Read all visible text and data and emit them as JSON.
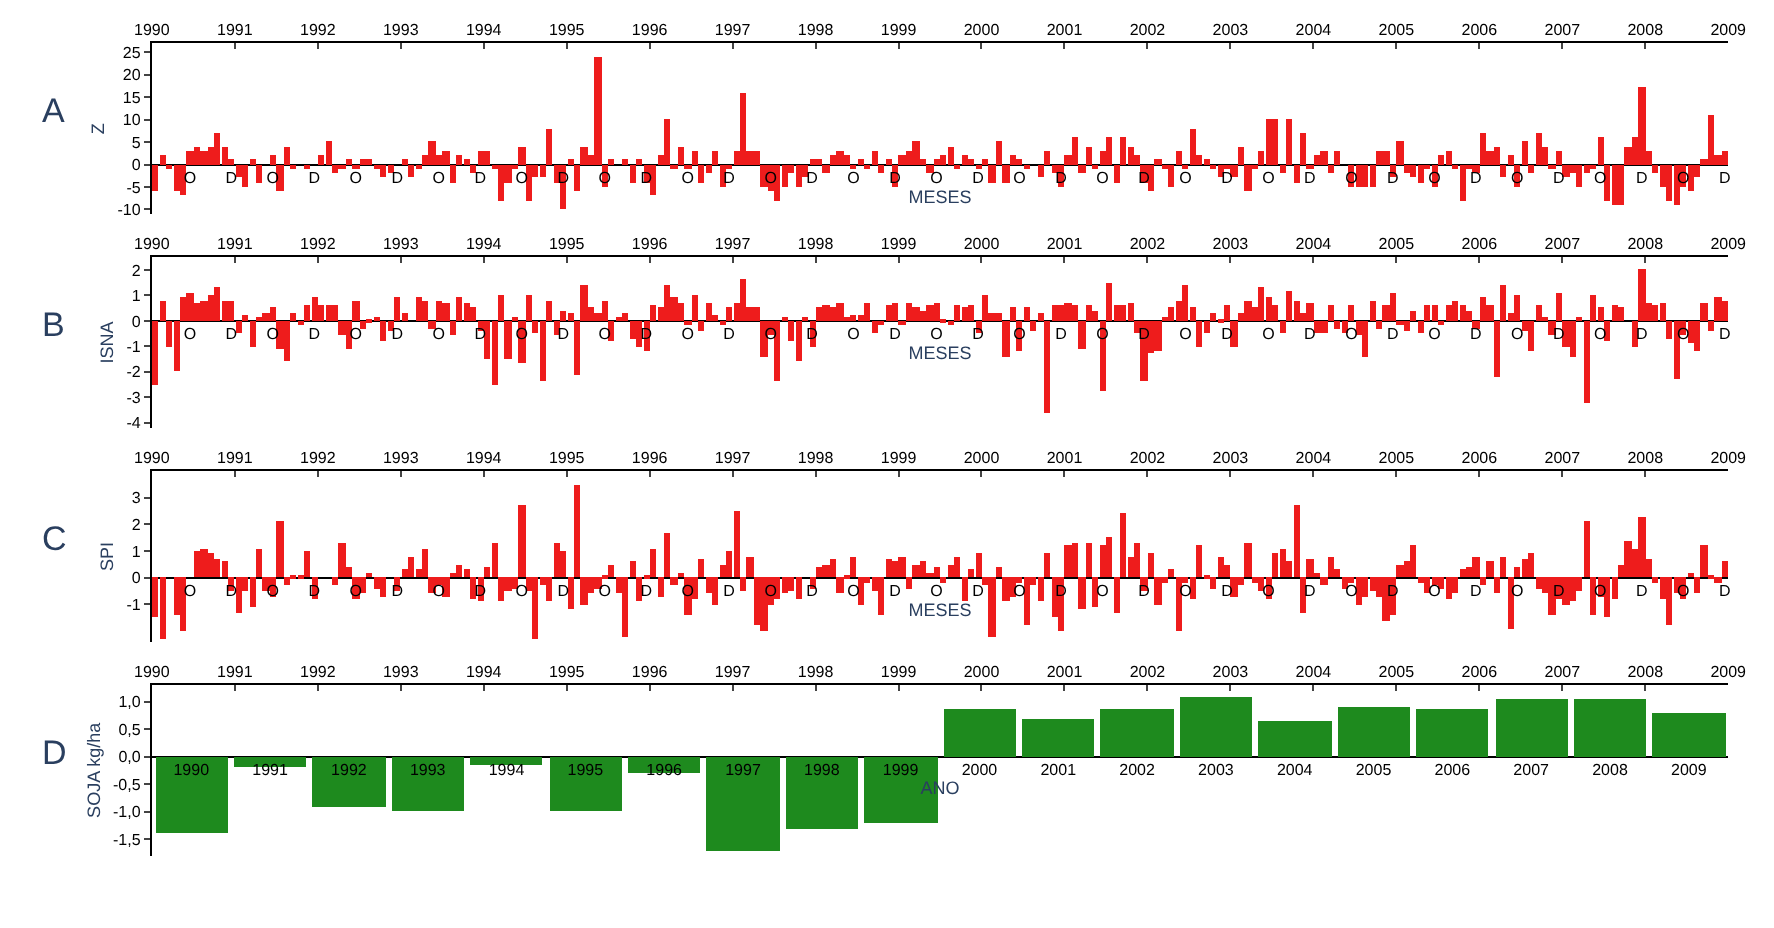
{
  "chart_data": [
    {
      "type": "bar",
      "title": "A",
      "ylabel": "Z",
      "xlabel": "MESES",
      "color": "#ee1c1c",
      "x2lim": [
        1990,
        2009
      ],
      "x2ticks": [
        1990,
        1991,
        1992,
        1993,
        1994,
        1995,
        1996,
        1997,
        1998,
        1999,
        2000,
        2001,
        2002,
        2003,
        2004,
        2005,
        2006,
        2007,
        2008,
        2009
      ],
      "ylim": [
        -11,
        27
      ],
      "yticks": [
        -10,
        -5,
        0,
        5,
        10,
        15,
        20,
        25
      ],
      "categories": [
        null,
        null,
        null,
        null,
        null,
        "O",
        null,
        null,
        null,
        null,
        null,
        "D",
        null,
        null,
        null,
        null,
        null,
        "O",
        null,
        null,
        null,
        null,
        null,
        "D",
        null,
        null,
        null,
        null,
        null,
        "O",
        null,
        null,
        null,
        null,
        null,
        "D",
        null,
        null,
        null,
        null,
        null,
        "O",
        null,
        null,
        null,
        null,
        null,
        "D",
        null,
        null,
        null,
        null,
        null,
        "O",
        null,
        null,
        null,
        null,
        null,
        "D",
        null,
        null,
        null,
        null,
        null,
        "O",
        null,
        null,
        null,
        null,
        null,
        "D",
        null,
        null,
        null,
        null,
        null,
        "O",
        null,
        null,
        null,
        null,
        null,
        "D",
        null,
        null,
        null,
        null,
        null,
        "O",
        null,
        null,
        null,
        null,
        null,
        "D",
        null,
        null,
        null,
        null,
        null,
        "O",
        null,
        null,
        null,
        null,
        null,
        "D",
        null,
        null,
        null,
        null,
        null,
        "O",
        null,
        null,
        null,
        null,
        null,
        "D",
        null,
        null,
        null,
        null,
        null,
        "O",
        null,
        null,
        null,
        null,
        null,
        "D",
        null,
        null,
        null,
        null,
        null,
        "O",
        null,
        null,
        null,
        null,
        null,
        "D",
        null,
        null,
        null,
        null,
        null,
        "O",
        null,
        null,
        null,
        null,
        null,
        "D",
        null,
        null,
        null,
        null,
        null,
        "O",
        null,
        null,
        null,
        null,
        null,
        "D",
        null,
        null,
        null,
        null,
        null,
        "O",
        null,
        null,
        null,
        null,
        null,
        "D",
        null,
        null,
        null,
        null,
        null,
        "O",
        null,
        null,
        null,
        null,
        null,
        "D",
        null,
        null,
        null,
        null,
        null,
        "O",
        null,
        null,
        null,
        null,
        null,
        "D",
        null,
        null,
        null,
        null,
        null,
        "O",
        null,
        null,
        null,
        null,
        null,
        "D",
        null,
        null,
        null,
        null,
        null,
        "O",
        null,
        null,
        null,
        null,
        null,
        "D"
      ],
      "values": [
        -6,
        2,
        -1,
        -6,
        -7,
        3,
        4,
        3,
        4,
        7,
        4,
        1,
        -3,
        -5,
        1,
        -4,
        0,
        2,
        -6,
        4,
        -1,
        0,
        -1,
        0,
        2,
        5,
        -2,
        -1,
        1,
        -1,
        1,
        1,
        -1,
        -3,
        -2,
        0,
        1,
        -3,
        -1,
        2,
        5,
        2,
        3,
        -4,
        2,
        1,
        -2,
        3,
        3,
        -1,
        -8,
        -4,
        -1,
        4,
        -8,
        -3,
        -3,
        8,
        -4,
        -10,
        1,
        -6,
        4,
        2,
        24,
        -5,
        1,
        0,
        1,
        -4,
        1,
        -4,
        -7,
        2,
        10,
        -1,
        4,
        -1,
        3,
        -4,
        -2,
        3,
        -5,
        -1,
        3,
        16,
        3,
        3,
        -5,
        -6,
        -8,
        -5,
        -2,
        -5,
        -3,
        1,
        1,
        -2,
        2,
        3,
        2,
        -1,
        1,
        -1,
        3,
        -2,
        1,
        -5,
        2,
        3,
        5,
        1,
        -2,
        1,
        2,
        4,
        -1,
        2,
        1,
        -1,
        1,
        -4,
        5,
        -4,
        2,
        1,
        -1,
        0,
        -3,
        3,
        -2,
        -5,
        2,
        6,
        -2,
        4,
        -1,
        3,
        6,
        -4,
        6,
        4,
        2,
        -4,
        -6,
        1,
        -1,
        -5,
        3,
        -1,
        8,
        2,
        1,
        -1,
        -3,
        -1,
        -3,
        4,
        -6,
        -1,
        3,
        10,
        10,
        -2,
        10,
        -4,
        7,
        -1,
        2,
        3,
        -2,
        3,
        0,
        -5,
        -5,
        -5,
        -5,
        3,
        3,
        -3,
        5,
        -2,
        -3,
        -4,
        -1,
        -5,
        2,
        3,
        -1,
        -8,
        -1,
        -2,
        7,
        3,
        4,
        -3,
        2,
        -5,
        5,
        -2,
        7,
        4,
        -1,
        3,
        -3,
        -2,
        -5,
        -2,
        -1,
        6,
        -8,
        -9,
        -9,
        4,
        6,
        17,
        3,
        -2,
        -5,
        -8,
        -9,
        -5,
        -6,
        -3,
        1,
        11,
        2,
        3
      ]
    },
    {
      "type": "bar",
      "title": "B",
      "ylabel": "ISNA",
      "xlabel": "MESES",
      "color": "#ee1c1c",
      "x2lim": [
        1990,
        2009
      ],
      "x2ticks": [
        1990,
        1991,
        1992,
        1993,
        1994,
        1995,
        1996,
        1997,
        1998,
        1999,
        2000,
        2001,
        2002,
        2003,
        2004,
        2005,
        2006,
        2007,
        2008,
        2009
      ],
      "ylim": [
        -4.2,
        2.5
      ],
      "yticks": [
        -4,
        -3,
        -2,
        -1,
        0,
        1,
        2
      ],
      "categories": [
        null,
        null,
        null,
        null,
        null,
        "O",
        null,
        null,
        null,
        null,
        null,
        "D",
        null,
        null,
        null,
        null,
        null,
        "O",
        null,
        null,
        null,
        null,
        null,
        "D",
        null,
        null,
        null,
        null,
        null,
        "O",
        null,
        null,
        null,
        null,
        null,
        "D",
        null,
        null,
        null,
        null,
        null,
        "O",
        null,
        null,
        null,
        null,
        null,
        "D",
        null,
        null,
        null,
        null,
        null,
        "O",
        null,
        null,
        null,
        null,
        null,
        "D",
        null,
        null,
        null,
        null,
        null,
        "O",
        null,
        null,
        null,
        null,
        null,
        "D",
        null,
        null,
        null,
        null,
        null,
        "O",
        null,
        null,
        null,
        null,
        null,
        "D",
        null,
        null,
        null,
        null,
        null,
        "O",
        null,
        null,
        null,
        null,
        null,
        "D",
        null,
        null,
        null,
        null,
        null,
        "O",
        null,
        null,
        null,
        null,
        null,
        "D",
        null,
        null,
        null,
        null,
        null,
        "O",
        null,
        null,
        null,
        null,
        null,
        "D",
        null,
        null,
        null,
        null,
        null,
        "O",
        null,
        null,
        null,
        null,
        null,
        "D",
        null,
        null,
        null,
        null,
        null,
        "O",
        null,
        null,
        null,
        null,
        null,
        "D",
        null,
        null,
        null,
        null,
        null,
        "O",
        null,
        null,
        null,
        null,
        null,
        "D",
        null,
        null,
        null,
        null,
        null,
        "O",
        null,
        null,
        null,
        null,
        null,
        "D",
        null,
        null,
        null,
        null,
        null,
        "O",
        null,
        null,
        null,
        null,
        null,
        "D",
        null,
        null,
        null,
        null,
        null,
        "O",
        null,
        null,
        null,
        null,
        null,
        "D",
        null,
        null,
        null,
        null,
        null,
        "O",
        null,
        null,
        null,
        null,
        null,
        "D",
        null,
        null,
        null,
        null,
        null,
        "O",
        null,
        null,
        null,
        null,
        null,
        "D",
        null,
        null,
        null,
        null,
        null,
        "O",
        null,
        null,
        null,
        null,
        null,
        "D"
      ],
      "values": [
        -2.5,
        0.8,
        -1,
        -2,
        0.9,
        1.1,
        0.7,
        0.8,
        1,
        1.3,
        0.8,
        0.8,
        -0.5,
        0.2,
        -1,
        0.1,
        0.3,
        0.5,
        -1.1,
        -1.6,
        0.3,
        -0.2,
        0.6,
        0.9,
        0.6,
        0.6,
        0.6,
        -0.6,
        -1.1,
        0.8,
        -0.3,
        -0.1,
        0.1,
        -0.8,
        -0.4,
        0.9,
        0.3,
        0,
        0.9,
        0.8,
        -0.3,
        0.8,
        0.7,
        -0.6,
        0.9,
        0.7,
        0.5,
        -0.4,
        -1.5,
        -2.5,
        1,
        -1.5,
        0.1,
        -1.7,
        1,
        -0.5,
        -2.4,
        0.8,
        -0.6,
        0.4,
        0.3,
        -2.1,
        1.4,
        0.5,
        0.3,
        0.8,
        -0.8,
        0.1,
        0.3,
        -0.7,
        -1,
        -1.2,
        0.6,
        0.5,
        1.4,
        0.9,
        0.7,
        -0.2,
        1,
        -0.4,
        0.7,
        0.2,
        -0.2,
        0.5,
        0.7,
        1.6,
        0.5,
        0.5,
        -1.4,
        -0.6,
        -2.4,
        0.1,
        -0.8,
        -1.6,
        0.1,
        -1,
        0.5,
        0.6,
        0.5,
        0.7,
        0.1,
        0.2,
        0.2,
        0.7,
        -0.5,
        -0.2,
        0.6,
        0.7,
        -0.2,
        0.7,
        0.5,
        0.4,
        0.6,
        0.7,
        -0.1,
        -0.2,
        0.6,
        0.5,
        0.6,
        -0.5,
        1,
        0.3,
        0.3,
        -1.4,
        0.5,
        -1.2,
        0.5,
        -0.4,
        0.3,
        -3.6,
        0.6,
        0.6,
        0.7,
        0.6,
        -1.1,
        0.6,
        0.4,
        -2.8,
        1.5,
        0.6,
        0.6,
        0.7,
        -0.5,
        -2.4,
        -1.3,
        -1.2,
        0.1,
        0.5,
        0.8,
        1.4,
        0.5,
        -1,
        -0.5,
        0.3,
        -0.1,
        0.6,
        -1,
        0.3,
        0.8,
        0.5,
        1.3,
        0.9,
        0.6,
        -0.5,
        1.2,
        0.8,
        0.3,
        0.7,
        -0.5,
        -0.5,
        0.6,
        -0.3,
        -0.5,
        0.6,
        -0.6,
        -1.4,
        0.8,
        -0.3,
        0.6,
        1.1,
        -0.2,
        -0.4,
        0.4,
        -0.5,
        0.6,
        0.6,
        -0.2,
        0.6,
        0.8,
        0.6,
        0.4,
        -0.3,
        0.9,
        0.6,
        -2.2,
        1.4,
        0.3,
        1,
        -0.4,
        -1.2,
        0.6,
        0.1,
        -0.6,
        1.1,
        -1,
        -1.4,
        0.1,
        -3.2,
        1,
        0.5,
        -0.8,
        0.6,
        0.5,
        0,
        -1,
        2,
        0.7,
        0.6,
        0.7,
        -0.7,
        -2.3,
        -0.6,
        -0.9,
        -1.2,
        0.7,
        -0.4,
        0.9,
        0.8
      ]
    },
    {
      "type": "bar",
      "title": "C",
      "ylabel": "SPI",
      "xlabel": "MESES",
      "color": "#ee1c1c",
      "x2lim": [
        1990,
        2009
      ],
      "x2ticks": [
        1990,
        1991,
        1992,
        1993,
        1994,
        1995,
        1996,
        1997,
        1998,
        1999,
        2000,
        2001,
        2002,
        2003,
        2004,
        2005,
        2006,
        2007,
        2008,
        2009
      ],
      "ylim": [
        -2.4,
        4
      ],
      "yticks": [
        -1,
        0,
        1,
        2,
        3
      ],
      "categories": [
        null,
        null,
        null,
        null,
        null,
        "O",
        null,
        null,
        null,
        null,
        null,
        "D",
        null,
        null,
        null,
        null,
        null,
        "O",
        null,
        null,
        null,
        null,
        null,
        "D",
        null,
        null,
        null,
        null,
        null,
        "O",
        null,
        null,
        null,
        null,
        null,
        "D",
        null,
        null,
        null,
        null,
        null,
        "O",
        null,
        null,
        null,
        null,
        null,
        "D",
        null,
        null,
        null,
        null,
        null,
        "O",
        null,
        null,
        null,
        null,
        null,
        "D",
        null,
        null,
        null,
        null,
        null,
        "O",
        null,
        null,
        null,
        null,
        null,
        "D",
        null,
        null,
        null,
        null,
        null,
        "O",
        null,
        null,
        null,
        null,
        null,
        "D",
        null,
        null,
        null,
        null,
        null,
        "O",
        null,
        null,
        null,
        null,
        null,
        "D",
        null,
        null,
        null,
        null,
        null,
        "O",
        null,
        null,
        null,
        null,
        null,
        "D",
        null,
        null,
        null,
        null,
        null,
        "O",
        null,
        null,
        null,
        null,
        null,
        "D",
        null,
        null,
        null,
        null,
        null,
        "O",
        null,
        null,
        null,
        null,
        null,
        "D",
        null,
        null,
        null,
        null,
        null,
        "O",
        null,
        null,
        null,
        null,
        null,
        "D",
        null,
        null,
        null,
        null,
        null,
        "O",
        null,
        null,
        null,
        null,
        null,
        "D",
        null,
        null,
        null,
        null,
        null,
        "O",
        null,
        null,
        null,
        null,
        null,
        "D",
        null,
        null,
        null,
        null,
        null,
        "O",
        null,
        null,
        null,
        null,
        null,
        "D",
        null,
        null,
        null,
        null,
        null,
        "O",
        null,
        null,
        null,
        null,
        null,
        "D",
        null,
        null,
        null,
        null,
        null,
        "O",
        null,
        null,
        null,
        null,
        null,
        "D",
        null,
        null,
        null,
        null,
        null,
        "O",
        null,
        null,
        null,
        null,
        null,
        "D",
        null,
        null,
        null,
        null,
        null,
        "O",
        null,
        null,
        null,
        null,
        null,
        "D"
      ],
      "values": [
        -1.5,
        -2.3,
        0,
        -1.4,
        -2,
        0,
        1,
        1.1,
        0.9,
        0.7,
        0.6,
        -0.5,
        -1.3,
        -0.5,
        -1.1,
        1.1,
        -0.5,
        -0.7,
        2.1,
        -0.3,
        0.1,
        0.1,
        1,
        -0.8,
        0,
        0,
        -0.3,
        1.3,
        0.4,
        -0.8,
        -0.6,
        0.2,
        -0.4,
        -0.7,
        0,
        -0.5,
        0.3,
        0.8,
        0.3,
        1.1,
        -0.6,
        -0.3,
        -0.7,
        0.2,
        0.5,
        0.3,
        -0.8,
        -0.9,
        0.4,
        1.3,
        -0.9,
        -0.5,
        -0.4,
        2.7,
        -0.5,
        -2.3,
        -0.3,
        -0.9,
        1.3,
        1,
        -1.2,
        3.5,
        -1,
        -0.6,
        -0.4,
        0.1,
        0.5,
        -0.6,
        -2.2,
        0.6,
        -0.9,
        0.1,
        1.1,
        -0.7,
        1.7,
        -0.3,
        0.2,
        -1.4,
        -0.8,
        0.7,
        -0.6,
        -1,
        0.5,
        1,
        2.5,
        -0.5,
        0.8,
        -1.8,
        -2,
        -1,
        -0.8,
        -0.6,
        -0.5,
        -0.8,
        0,
        -0.4,
        0.4,
        0.5,
        0.7,
        -0.6,
        0.1,
        0.8,
        -1,
        -0.2,
        -0.5,
        -1.4,
        0.7,
        0.6,
        0.8,
        -0.4,
        0.5,
        0.6,
        0.2,
        0.4,
        -0.2,
        0.5,
        0.8,
        -0.9,
        0.3,
        0.9,
        -0.3,
        -2.2,
        0.4,
        -0.9,
        -0.7,
        -0.2,
        -1.8,
        -0.3,
        -0.9,
        0.9,
        -1.5,
        -2,
        1.2,
        1.3,
        -1.2,
        1.3,
        -1.1,
        1.2,
        1.5,
        -1.3,
        2.4,
        0.8,
        1.3,
        -0.5,
        0.9,
        -1,
        -0.2,
        0.3,
        -2,
        -0.2,
        -0.8,
        1.2,
        0.1,
        -0.4,
        0.8,
        0.5,
        -0.7,
        -0.3,
        1.3,
        -0.2,
        -0.5,
        -0.8,
        0.9,
        1.1,
        0.6,
        2.7,
        -1.3,
        0.7,
        0.2,
        -0.3,
        0.8,
        0.3,
        -0.4,
        -0.2,
        -1,
        -0.7,
        -0.5,
        -0.7,
        -1.6,
        -1.4,
        0.5,
        0.6,
        1.2,
        -0.2,
        -0.6,
        -0.3,
        -0.4,
        -0.8,
        -0.6,
        0.3,
        0.4,
        0.8,
        -0.3,
        0.6,
        -0.6,
        0.8,
        -1.9,
        0.4,
        0.7,
        0.9,
        -0.4,
        -0.6,
        -1.4,
        -0.8,
        -1,
        -0.9,
        -0.5,
        2.1,
        -1.4,
        -0.7,
        -1.5,
        -0.8,
        0.5,
        1.4,
        1.1,
        2.3,
        0.7,
        -0.2,
        -0.8,
        -1.8,
        -0.6,
        -0.8,
        0.2,
        -0.6,
        1.2,
        0.1,
        -0.2,
        0.6
      ]
    },
    {
      "type": "bar",
      "title": "D",
      "ylabel": "SOJA kg/ha",
      "xlabel": "ANO",
      "color": "#1e8a1e",
      "categories": [
        "1990",
        "1991",
        "1992",
        "1993",
        "1994",
        "1995",
        "1996",
        "1997",
        "1998",
        "1999",
        "2000",
        "2001",
        "2002",
        "2003",
        "2004",
        "2005",
        "2006",
        "2007",
        "2008",
        "2009"
      ],
      "values": [
        -1.4,
        -0.2,
        -0.9,
        -1.0,
        -0.15,
        -1.0,
        -0.3,
        -1.7,
        -1.3,
        -1.2,
        0.85,
        0.7,
        0.85,
        1.1,
        0.65,
        0.9,
        0.85,
        1.05,
        1.05,
        0.8
      ],
      "x2lim": [
        1990,
        2009
      ],
      "x2ticks": [
        1990,
        1991,
        1992,
        1993,
        1994,
        1995,
        1996,
        1997,
        1998,
        1999,
        2000,
        2001,
        2002,
        2003,
        2004,
        2005,
        2006,
        2007,
        2008,
        2009
      ],
      "ylim": [
        -1.8,
        1.3
      ],
      "yticks": [
        {
          "value": -1.5,
          "label": "-1,5"
        },
        {
          "value": -1.0,
          "label": "-1,0"
        },
        {
          "value": -0.5,
          "label": "-0,5"
        },
        {
          "value": 0.0,
          "label": "0,0"
        },
        {
          "value": 0.5,
          "label": "0,5"
        },
        {
          "value": 1.0,
          "label": "1,0"
        }
      ]
    }
  ]
}
